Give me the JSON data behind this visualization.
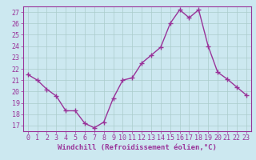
{
  "x": [
    0,
    1,
    2,
    3,
    4,
    5,
    6,
    7,
    8,
    9,
    10,
    11,
    12,
    13,
    14,
    15,
    16,
    17,
    18,
    19,
    20,
    21,
    22,
    23
  ],
  "y": [
    21.5,
    21.0,
    20.2,
    19.6,
    18.3,
    18.3,
    17.2,
    16.8,
    17.3,
    19.4,
    21.0,
    21.2,
    22.5,
    23.2,
    23.9,
    26.0,
    27.2,
    26.5,
    27.2,
    24.0,
    21.7,
    21.1,
    20.4,
    19.7
  ],
  "line_color": "#993399",
  "marker": "+",
  "marker_size": 4,
  "linewidth": 1.0,
  "xlabel": "Windchill (Refroidissement éolien,°C)",
  "xlim": [
    -0.5,
    23.5
  ],
  "ylim": [
    16.5,
    27.5
  ],
  "yticks": [
    17,
    18,
    19,
    20,
    21,
    22,
    23,
    24,
    25,
    26,
    27
  ],
  "xticks": [
    0,
    1,
    2,
    3,
    4,
    5,
    6,
    7,
    8,
    9,
    10,
    11,
    12,
    13,
    14,
    15,
    16,
    17,
    18,
    19,
    20,
    21,
    22,
    23
  ],
  "bg_color": "#cce8f0",
  "grid_color": "#aacccc",
  "tick_color": "#993399",
  "label_color": "#993399",
  "xlabel_fontsize": 6.5,
  "tick_fontsize": 6.0
}
